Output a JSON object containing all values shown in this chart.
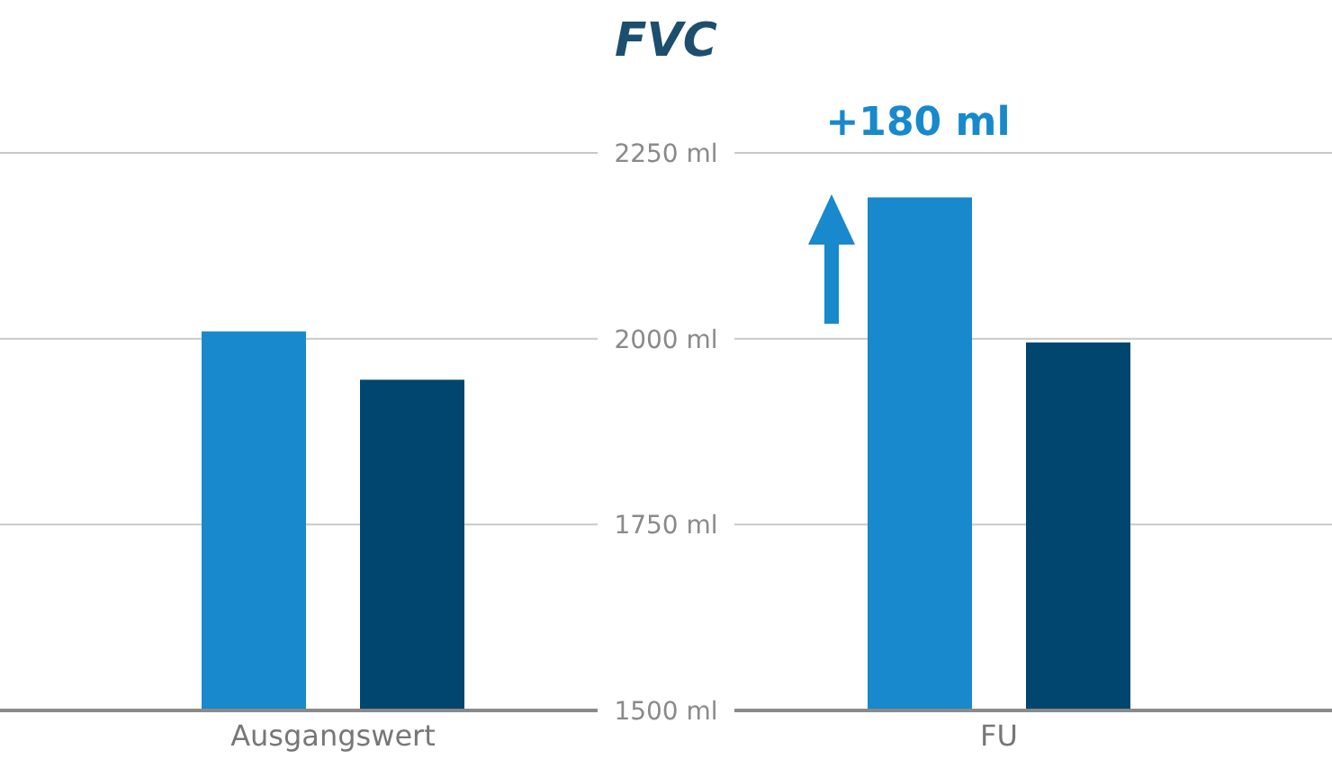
{
  "chart_data": {
    "type": "bar",
    "title": "FVC",
    "categories": [
      "Ausgangswert",
      "FU"
    ],
    "series": [
      {
        "color": "#1789cc",
        "values": [
          2010,
          2190
        ]
      },
      {
        "color": "#00466e",
        "values": [
          1945,
          1995
        ]
      }
    ],
    "ylim": [
      1500,
      2250
    ],
    "yticks": [
      {
        "value": 1500,
        "label": "1500 ml"
      },
      {
        "value": 1750,
        "label": "1750 ml"
      },
      {
        "value": 2000,
        "label": "2000 ml"
      },
      {
        "value": 2250,
        "label": "2250 ml"
      }
    ],
    "grid": "y",
    "annotations": [
      "+180 ml"
    ]
  }
}
